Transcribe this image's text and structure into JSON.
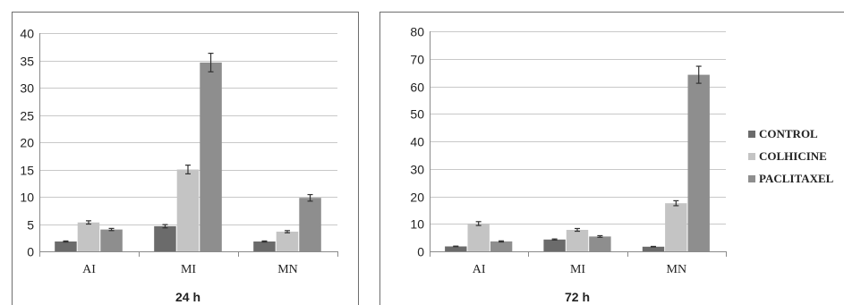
{
  "colors": {
    "CONTROL": "#6b6b6b",
    "COLHICINE": "#c4c4c4",
    "PACLITAXEL": "#8e8e8e"
  },
  "legend": [
    "CONTROL",
    "COLHICINE",
    "PACLITAXEL"
  ],
  "legend_position": "right",
  "chart_data": [
    {
      "type": "bar",
      "caption": "24 h",
      "categories": [
        "AI",
        "MI",
        "MN"
      ],
      "ylim": [
        0,
        40
      ],
      "yticks": [
        0,
        5,
        10,
        15,
        20,
        25,
        30,
        35,
        40
      ],
      "grid": true,
      "series": [
        {
          "name": "CONTROL",
          "values": [
            1.8,
            4.6,
            1.8
          ],
          "errors": [
            0.1,
            0.3,
            0.1
          ]
        },
        {
          "name": "COLHICINE",
          "values": [
            5.3,
            15.0,
            3.6
          ],
          "errors": [
            0.3,
            0.8,
            0.2
          ]
        },
        {
          "name": "PACLITAXEL",
          "values": [
            4.0,
            34.6,
            9.8
          ],
          "errors": [
            0.2,
            1.7,
            0.6
          ]
        }
      ]
    },
    {
      "type": "bar",
      "caption": "72 h",
      "categories": [
        "AI",
        "MI",
        "MN"
      ],
      "ylim": [
        0,
        80
      ],
      "yticks": [
        0,
        10,
        20,
        30,
        40,
        50,
        60,
        70,
        80
      ],
      "grid": true,
      "series": [
        {
          "name": "CONTROL",
          "values": [
            1.8,
            4.3,
            1.7
          ],
          "errors": [
            0.1,
            0.2,
            0.1
          ]
        },
        {
          "name": "COLHICINE",
          "values": [
            10.1,
            7.8,
            17.5
          ],
          "errors": [
            0.7,
            0.5,
            0.9
          ]
        },
        {
          "name": "PACLITAXEL",
          "values": [
            3.6,
            5.4,
            64.2
          ],
          "errors": [
            0.2,
            0.3,
            3.1
          ]
        }
      ]
    }
  ]
}
